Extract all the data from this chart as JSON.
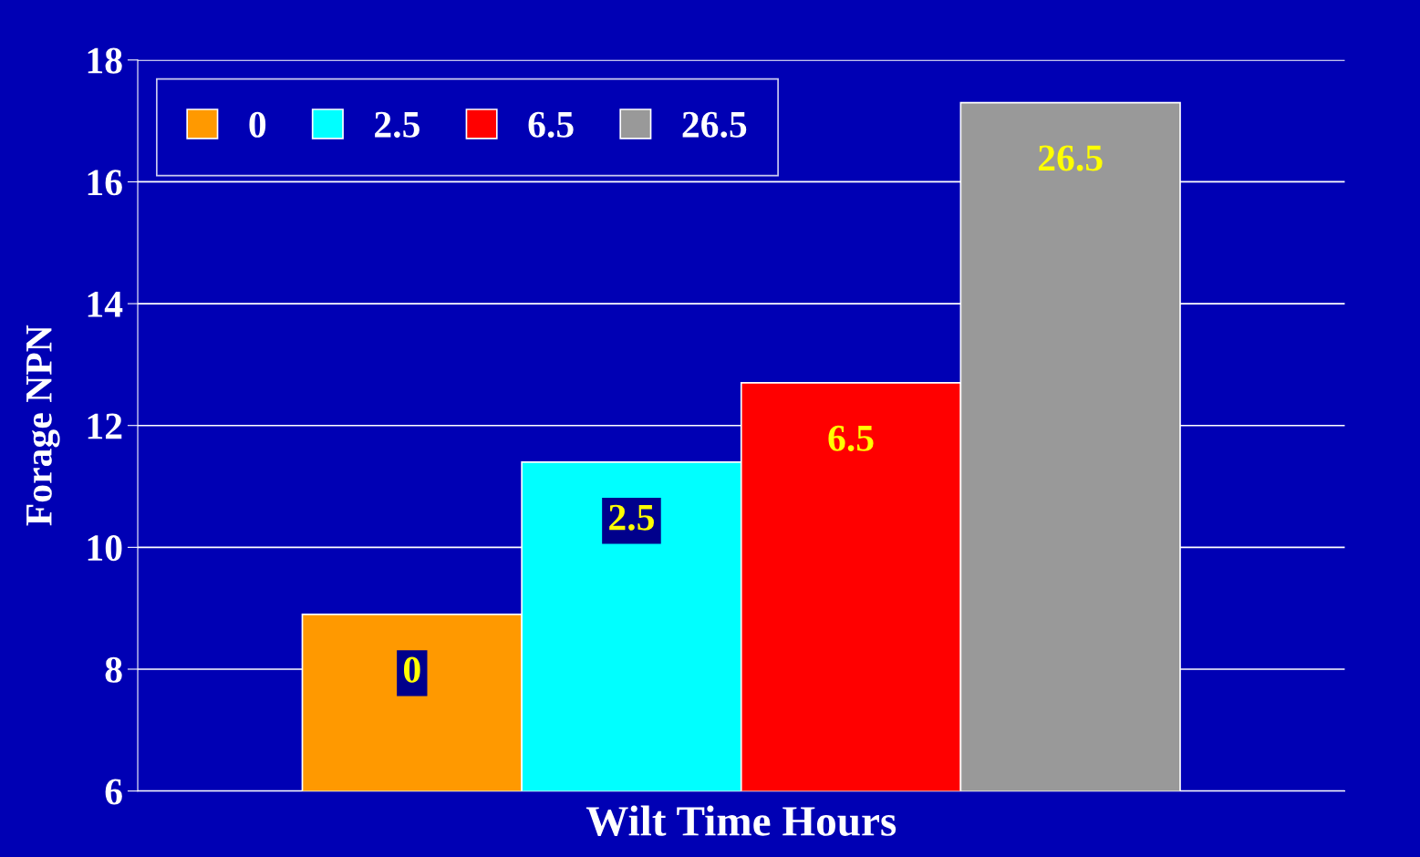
{
  "chart_data": {
    "type": "bar",
    "xlabel": "Wilt Time Hours",
    "ylabel": "Forage NPN",
    "categories": [
      null
    ],
    "series": [
      {
        "name": "0",
        "color": "#ff9900",
        "values": [
          8.9
        ]
      },
      {
        "name": "2.5",
        "color": "#00ffff",
        "values": [
          11.4
        ]
      },
      {
        "name": "6.5",
        "color": "#ff0000",
        "values": [
          12.7
        ]
      },
      {
        "name": "26.5",
        "color": "#999999",
        "values": [
          17.3
        ]
      }
    ],
    "annotations": [
      "0",
      "2.5",
      "6.5",
      "26.5"
    ],
    "ylim": [
      6,
      18
    ],
    "yticks": [
      6,
      8,
      10,
      12,
      14,
      16,
      18
    ],
    "grid": "y",
    "legend": "top left"
  }
}
